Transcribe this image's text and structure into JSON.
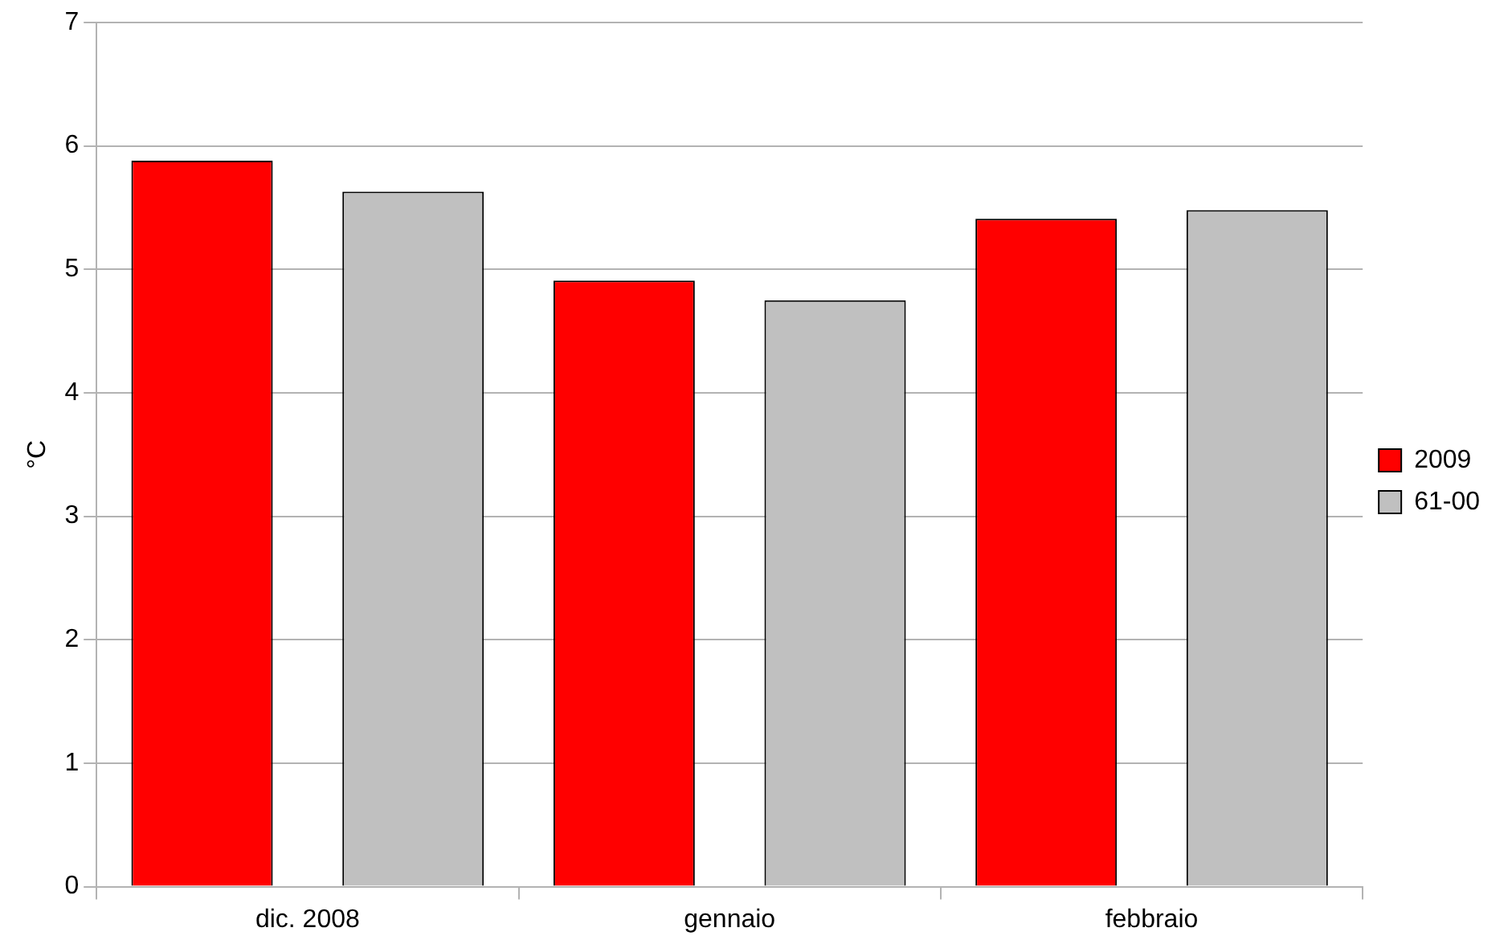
{
  "chart_data": {
    "type": "bar",
    "ylabel": "°C",
    "categories": [
      "dic. 2008",
      "gennaio",
      "febbraio"
    ],
    "series": [
      {
        "name": "2009",
        "color": "#ff0000",
        "values": [
          5.88,
          4.91,
          5.41
        ]
      },
      {
        "name": "61-00",
        "color": "#c0c0c0",
        "values": [
          5.63,
          4.75,
          5.48
        ]
      }
    ],
    "ylim": [
      0,
      7
    ],
    "yticks": [
      0,
      1,
      2,
      3,
      4,
      5,
      6,
      7
    ],
    "grid": "y",
    "legend": "right"
  }
}
